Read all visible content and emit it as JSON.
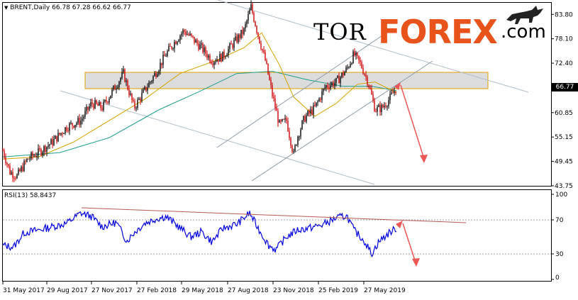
{
  "main_header": {
    "symbol": "BRENT,Daily",
    "ohlc": "66.78 67.28 66.62 66.77"
  },
  "rsi_header": {
    "label": "RSI(13) 58.8437"
  },
  "logo": {
    "part1": "TOR",
    "part2": "FOREX",
    "part3": ".com"
  },
  "price_axis": [
    "83.80",
    "78.10",
    "72.40",
    "66.77",
    "60.85",
    "55.15",
    "49.45",
    "43.75"
  ],
  "current_price": "66.77",
  "rsi_axis": [
    "100",
    "70",
    "30",
    "0"
  ],
  "dates": [
    "31 May 2017",
    "29 Aug 2017",
    "27 Nov 2017",
    "27 Feb 2018",
    "29 May 2018",
    "27 Aug 2018",
    "23 Nov 2018",
    "25 Feb 2019",
    "27 May 2019"
  ],
  "colors": {
    "bull_candle": "#000000",
    "bear_candle": "#cc0000",
    "ma_fast": "#d4a300",
    "ma_slow": "#1f9e8f",
    "rsi_line": "#0000dd",
    "channel": "#9aa6b2",
    "zone_fill": "#dcdcdc",
    "zone_border": "#e0a000",
    "arrow": "#ee5555",
    "logo_accent": "#e8531b"
  },
  "chart_data": {
    "type": "candlestick",
    "symbol": "BRENT",
    "timeframe": "Daily",
    "last": {
      "open": 66.78,
      "high": 67.28,
      "low": 66.62,
      "close": 66.77
    },
    "y_range": [
      43.75,
      86.5
    ],
    "close_points": [
      [
        0,
        52.0
      ],
      [
        10,
        47.0
      ],
      [
        20,
        46.0
      ],
      [
        35,
        50.0
      ],
      [
        50,
        51.5
      ],
      [
        70,
        54.0
      ],
      [
        90,
        57.5
      ],
      [
        110,
        59.0
      ],
      [
        125,
        63.0
      ],
      [
        140,
        62.0
      ],
      [
        155,
        66.0
      ],
      [
        170,
        70.0
      ],
      [
        185,
        62.0
      ],
      [
        200,
        66.0
      ],
      [
        215,
        70.0
      ],
      [
        230,
        74.5
      ],
      [
        245,
        78.0
      ],
      [
        255,
        80.0
      ],
      [
        265,
        78.5
      ],
      [
        280,
        76.0
      ],
      [
        295,
        73.0
      ],
      [
        310,
        74.0
      ],
      [
        325,
        77.0
      ],
      [
        340,
        80.0
      ],
      [
        350,
        85.5
      ],
      [
        360,
        79.0
      ],
      [
        370,
        73.0
      ],
      [
        380,
        65.0
      ],
      [
        390,
        58.0
      ],
      [
        400,
        59.0
      ],
      [
        410,
        51.0
      ],
      [
        415,
        55.0
      ],
      [
        425,
        59.5
      ],
      [
        440,
        62.0
      ],
      [
        455,
        67.0
      ],
      [
        470,
        68.0
      ],
      [
        485,
        71.0
      ],
      [
        495,
        74.5
      ],
      [
        505,
        72.0
      ],
      [
        515,
        68.0
      ],
      [
        525,
        61.5
      ],
      [
        535,
        62.0
      ],
      [
        545,
        64.0
      ],
      [
        555,
        66.77
      ]
    ],
    "ma_fast_points": [
      [
        0,
        50.0
      ],
      [
        50,
        50.5
      ],
      [
        100,
        54.0
      ],
      [
        150,
        59.0
      ],
      [
        200,
        64.0
      ],
      [
        250,
        70.0
      ],
      [
        300,
        73.0
      ],
      [
        340,
        76.0
      ],
      [
        365,
        79.5
      ],
      [
        390,
        72.0
      ],
      [
        410,
        64.5
      ],
      [
        440,
        60.0
      ],
      [
        470,
        63.0
      ],
      [
        500,
        67.5
      ],
      [
        525,
        68.0
      ],
      [
        555,
        65.5
      ]
    ],
    "ma_slow_points": [
      [
        0,
        50.5
      ],
      [
        80,
        51.5
      ],
      [
        150,
        55.0
      ],
      [
        220,
        61.5
      ],
      [
        280,
        66.0
      ],
      [
        330,
        70.0
      ],
      [
        380,
        70.5
      ],
      [
        430,
        68.5
      ],
      [
        480,
        67.0
      ],
      [
        520,
        67.0
      ],
      [
        555,
        66.0
      ]
    ],
    "resistance_zone": [
      67.8,
      71.8
    ],
    "rsi": {
      "period": 13,
      "value": 58.8437,
      "levels": [
        70,
        30
      ],
      "range": [
        0,
        100
      ],
      "points": [
        [
          0,
          40
        ],
        [
          15,
          38
        ],
        [
          30,
          55
        ],
        [
          50,
          58
        ],
        [
          70,
          62
        ],
        [
          90,
          66
        ],
        [
          110,
          78
        ],
        [
          125,
          74
        ],
        [
          140,
          62
        ],
        [
          160,
          67
        ],
        [
          175,
          45
        ],
        [
          185,
          55
        ],
        [
          200,
          66
        ],
        [
          215,
          71
        ],
        [
          230,
          74
        ],
        [
          245,
          64
        ],
        [
          265,
          50
        ],
        [
          280,
          56
        ],
        [
          295,
          44
        ],
        [
          310,
          60
        ],
        [
          330,
          65
        ],
        [
          348,
          78
        ],
        [
          360,
          60
        ],
        [
          375,
          40
        ],
        [
          385,
          35
        ],
        [
          400,
          50
        ],
        [
          415,
          58
        ],
        [
          430,
          60
        ],
        [
          450,
          64
        ],
        [
          470,
          72
        ],
        [
          485,
          75
        ],
        [
          495,
          58
        ],
        [
          510,
          45
        ],
        [
          520,
          30
        ],
        [
          530,
          44
        ],
        [
          545,
          55
        ],
        [
          555,
          60
        ]
      ]
    }
  }
}
